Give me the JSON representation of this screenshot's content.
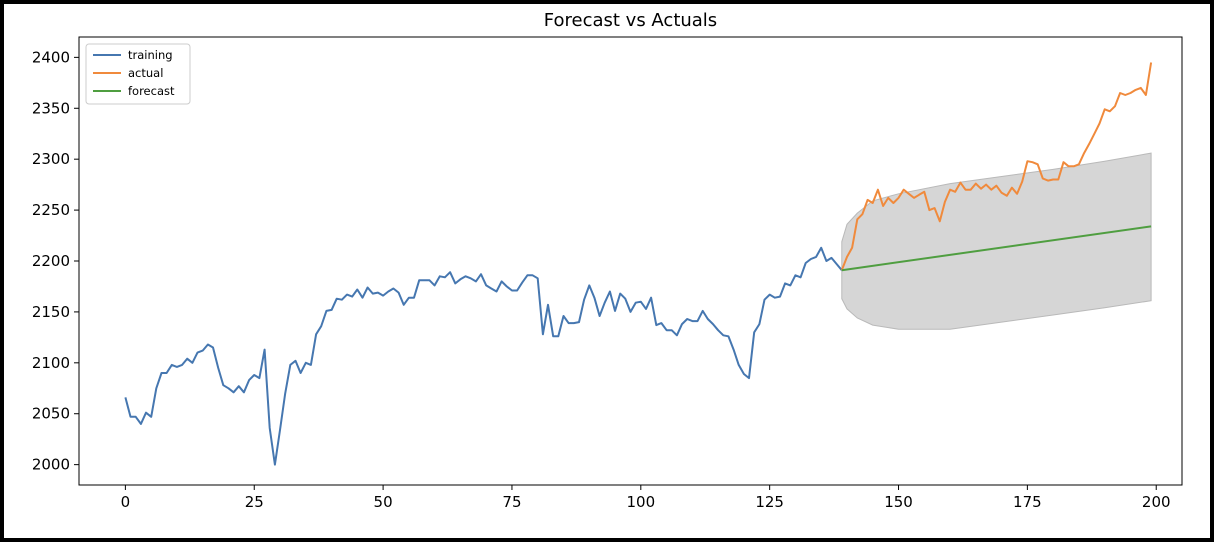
{
  "chart_data": {
    "type": "line",
    "title": "Forecast vs Actuals",
    "xlabel": "",
    "ylabel": "",
    "xlim": [
      -9,
      205
    ],
    "ylim": [
      1980,
      2420
    ],
    "x_ticks": [
      0,
      25,
      50,
      75,
      100,
      125,
      150,
      175,
      200
    ],
    "y_ticks": [
      2000,
      2050,
      2100,
      2150,
      2200,
      2250,
      2300,
      2350,
      2400
    ],
    "grid": false,
    "legend_position": "top-left",
    "series": [
      {
        "name": "training",
        "color": "#4677b0",
        "x_start": 0,
        "values": [
          2066,
          2047,
          2047,
          2040,
          2051,
          2047,
          2075,
          2090,
          2090,
          2098,
          2096,
          2098,
          2104,
          2100,
          2110,
          2112,
          2118,
          2115,
          2095,
          2078,
          2075,
          2071,
          2077,
          2071,
          2083,
          2088,
          2085,
          2113,
          2036,
          2000,
          2034,
          2070,
          2098,
          2102,
          2090,
          2100,
          2098,
          2128,
          2136,
          2151,
          2152,
          2163,
          2162,
          2167,
          2165,
          2172,
          2164,
          2174,
          2168,
          2169,
          2166,
          2170,
          2173,
          2169,
          2157,
          2164,
          2164,
          2181,
          2181,
          2181,
          2176,
          2185,
          2184,
          2189,
          2178,
          2182,
          2185,
          2183,
          2180,
          2187,
          2176,
          2173,
          2170,
          2180,
          2175,
          2171,
          2171,
          2179,
          2186,
          2186,
          2183,
          2128,
          2157,
          2126,
          2126,
          2146,
          2139,
          2139,
          2140,
          2162,
          2176,
          2164,
          2146,
          2159,
          2170,
          2151,
          2168,
          2163,
          2150,
          2159,
          2160,
          2153,
          2164,
          2137,
          2139,
          2132,
          2132,
          2127,
          2138,
          2143,
          2141,
          2141,
          2151,
          2143,
          2138,
          2132,
          2127,
          2126,
          2113,
          2098,
          2089,
          2085,
          2130,
          2138,
          2162,
          2167,
          2164,
          2165,
          2178,
          2176,
          2186,
          2184,
          2198,
          2202,
          2204,
          2213,
          2200,
          2203,
          2197,
          2191
        ]
      },
      {
        "name": "actual",
        "color": "#f08a3c",
        "x_start": 139,
        "values": [
          2191,
          2204,
          2213,
          2241,
          2246,
          2260,
          2257,
          2270,
          2254,
          2262,
          2257,
          2262,
          2270,
          2266,
          2262,
          2265,
          2268,
          2250,
          2252,
          2239,
          2258,
          2270,
          2268,
          2277,
          2270,
          2270,
          2276,
          2271,
          2275,
          2270,
          2274,
          2267,
          2264,
          2272,
          2266,
          2278,
          2298,
          2297,
          2295,
          2281,
          2279,
          2280,
          2280,
          2297,
          2293,
          2293,
          2295,
          2306,
          2315,
          2325,
          2335,
          2349,
          2347,
          2352,
          2365,
          2363,
          2365,
          2368,
          2370,
          2363,
          2395
        ]
      },
      {
        "name": "forecast",
        "color": "#4f9e40",
        "x": [
          139,
          199
        ],
        "values": [
          2191,
          2234
        ]
      }
    ],
    "confidence_band": {
      "color": "#d6d6d6",
      "x": [
        139,
        140,
        142,
        145,
        150,
        160,
        170,
        180,
        190,
        199
      ],
      "upper": [
        2219,
        2236,
        2247,
        2259,
        2266,
        2276,
        2283,
        2290,
        2298,
        2306
      ],
      "lower": [
        2163,
        2153,
        2144,
        2137,
        2133,
        2133,
        2140,
        2147,
        2154,
        2161
      ]
    }
  }
}
